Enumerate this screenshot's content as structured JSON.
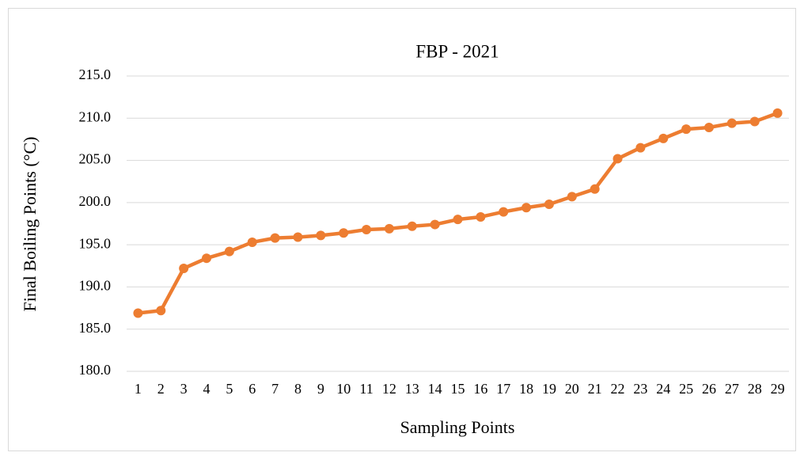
{
  "chart_data": {
    "type": "line",
    "title": "FBP - 2021",
    "x_label": "Sampling Points",
    "y_label": "Final Boiling Points (°C)",
    "categories": [
      "1",
      "2",
      "3",
      "4",
      "5",
      "6",
      "7",
      "8",
      "9",
      "10",
      "11",
      "12",
      "13",
      "14",
      "15",
      "16",
      "17",
      "18",
      "19",
      "20",
      "21",
      "22",
      "23",
      "24",
      "25",
      "26",
      "27",
      "28",
      "29"
    ],
    "series": [
      {
        "name": "FBP",
        "color": "#ed7d31",
        "values": [
          186.9,
          187.2,
          192.2,
          193.4,
          194.2,
          195.3,
          195.8,
          195.9,
          196.1,
          196.4,
          196.8,
          196.9,
          197.2,
          197.4,
          198.0,
          198.3,
          198.9,
          199.4,
          199.8,
          200.7,
          201.6,
          205.2,
          206.5,
          207.6,
          208.7,
          208.9,
          209.4,
          209.6,
          210.6
        ]
      }
    ],
    "ylim": [
      180,
      215
    ],
    "yticks": [
      {
        "value": 180,
        "label": "180.0"
      },
      {
        "value": 185,
        "label": "185.0"
      },
      {
        "value": 190,
        "label": "190.0"
      },
      {
        "value": 195,
        "label": "195.0"
      },
      {
        "value": 200,
        "label": "200.0"
      },
      {
        "value": 205,
        "label": "205.0"
      },
      {
        "value": 210,
        "label": "210.0"
      },
      {
        "value": 215,
        "label": "215.0"
      }
    ],
    "grid": true
  }
}
